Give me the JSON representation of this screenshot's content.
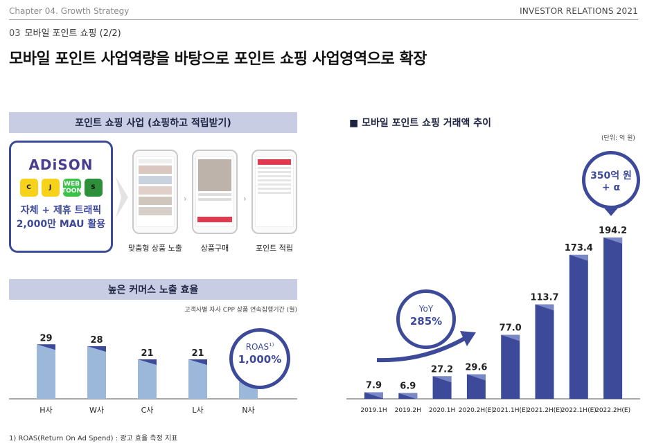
{
  "header": {
    "chapter": "Chapter 04. Growth Strategy",
    "right": "INVESTOR RELATIONS 2021"
  },
  "subheading": {
    "num": "03",
    "text": "모바일 포인트 쇼핑 (2/2)"
  },
  "title": "모바일 포인트 사업역량을 바탕으로 포인트 쇼핑 사업영역으로 확장",
  "left_top": {
    "header": "포인트 쇼핑 사업 (쇼핑하고 적립받기)",
    "logo": "ADiSON",
    "apps": [
      {
        "label": "C",
        "bg": "#f6d21a",
        "fg": "#111"
      },
      {
        "label": "J",
        "bg": "#f6d21a",
        "fg": "#111"
      },
      {
        "label": "WEB TOON",
        "bg": "#3cc24a",
        "fg": "#fff"
      },
      {
        "label": "S",
        "bg": "#2e8f3a",
        "fg": "#111"
      }
    ],
    "line1": "자체 + 제휴 트래픽",
    "line2": "2,000만 MAU 활용",
    "steps": [
      "맞춤형 상품 노출",
      "상품구매",
      "포인트 적립"
    ]
  },
  "left_chart_header": "높은 커머스 노출 효율",
  "left_chart_note": "고객사별 자사 CPP 상품 연속집행기간 (월)",
  "roas": {
    "label": "ROAS",
    "sup": "1)",
    "value": "1,000%"
  },
  "footnote": "1) ROAS(Return On Ad Spend) : 광고 효율 측정 지표",
  "right_title": "■ 모바일 포인트 쇼핑 거래액 추이",
  "right_unit": "(단위: 억 원)",
  "yoy": {
    "label": "YoY",
    "value": "285%"
  },
  "target": {
    "line1": "350억 원",
    "line2": "+ α"
  },
  "chart_data": [
    {
      "type": "bar",
      "categories": [
        "H사",
        "W사",
        "C사",
        "L사",
        "N사"
      ],
      "values": [
        29,
        28,
        21,
        21,
        9
      ],
      "ylim": [
        0,
        35
      ],
      "colors": {
        "bar": "#9bb8da",
        "corner": "#3d4a9a"
      }
    },
    {
      "type": "bar",
      "categories": [
        "2019.1H",
        "2019.2H",
        "2020.1H",
        "2020.2H(E)",
        "2021.1H(E)",
        "2021.2H(E)",
        "2022.1H(E)",
        "2022.2H(E)"
      ],
      "values": [
        7.9,
        6.9,
        27.2,
        29.6,
        77.0,
        113.7,
        173.4,
        194.2
      ],
      "labels": [
        "7.9",
        "6.9",
        "27.2",
        "29.6",
        "77.0",
        "113.7",
        "173.4",
        "194.2"
      ],
      "ylim": [
        0,
        200
      ],
      "colors": {
        "bar": "#3d4a9a",
        "corner": "#7b88c6"
      }
    }
  ]
}
